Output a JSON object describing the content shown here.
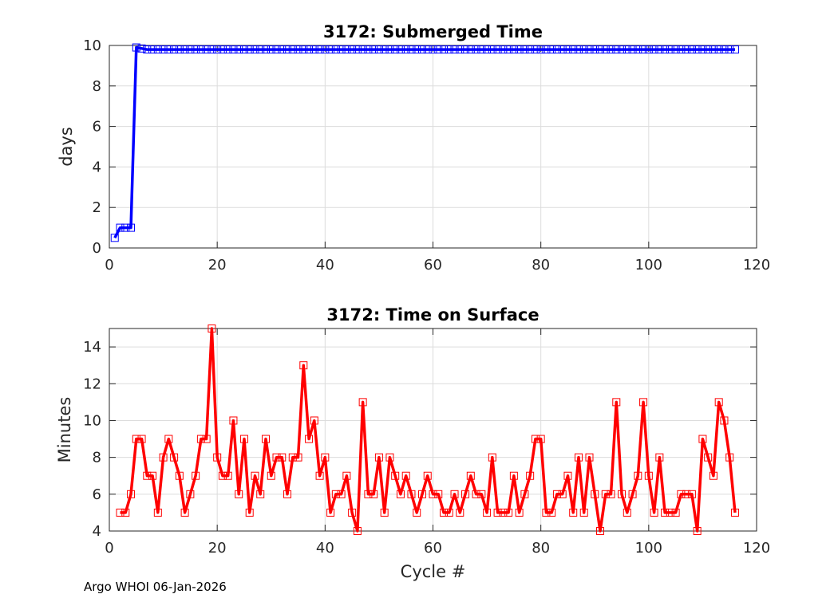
{
  "chart_data": [
    {
      "type": "line",
      "title": "3172: Submerged Time",
      "xlabel": "",
      "ylabel": "days",
      "xlim": [
        0,
        120
      ],
      "ylim": [
        0,
        10
      ],
      "xticks": [
        0,
        20,
        40,
        60,
        80,
        100,
        120
      ],
      "yticks": [
        0,
        2,
        4,
        6,
        8,
        10
      ],
      "grid": true,
      "color": "#0000ff",
      "marker": "square",
      "x": [
        1,
        2,
        3,
        4,
        5,
        6,
        7,
        8,
        9,
        10,
        11,
        12,
        13,
        14,
        15,
        16,
        17,
        18,
        19,
        20,
        21,
        22,
        23,
        24,
        25,
        26,
        27,
        28,
        29,
        30,
        31,
        32,
        33,
        34,
        35,
        36,
        37,
        38,
        39,
        40,
        41,
        42,
        43,
        44,
        45,
        46,
        47,
        48,
        49,
        50,
        51,
        52,
        53,
        54,
        55,
        56,
        57,
        58,
        59,
        60,
        61,
        62,
        63,
        64,
        65,
        66,
        67,
        68,
        69,
        70,
        71,
        72,
        73,
        74,
        75,
        76,
        77,
        78,
        79,
        80,
        81,
        82,
        83,
        84,
        85,
        86,
        87,
        88,
        89,
        90,
        91,
        92,
        93,
        94,
        95,
        96,
        97,
        98,
        99,
        100,
        101,
        102,
        103,
        104,
        105,
        106,
        107,
        108,
        109,
        110,
        111,
        112,
        113,
        114,
        115,
        116
      ],
      "y": [
        0.5,
        1,
        1,
        1,
        9.9,
        9.85,
        9.8,
        9.8,
        9.8,
        9.8,
        9.8,
        9.8,
        9.8,
        9.8,
        9.8,
        9.8,
        9.8,
        9.8,
        9.8,
        9.8,
        9.8,
        9.8,
        9.8,
        9.8,
        9.8,
        9.8,
        9.8,
        9.8,
        9.8,
        9.8,
        9.8,
        9.8,
        9.8,
        9.8,
        9.8,
        9.8,
        9.8,
        9.8,
        9.8,
        9.8,
        9.8,
        9.8,
        9.8,
        9.8,
        9.8,
        9.8,
        9.8,
        9.8,
        9.8,
        9.8,
        9.8,
        9.8,
        9.8,
        9.8,
        9.8,
        9.8,
        9.8,
        9.8,
        9.8,
        9.8,
        9.8,
        9.8,
        9.8,
        9.8,
        9.8,
        9.8,
        9.8,
        9.8,
        9.8,
        9.8,
        9.8,
        9.8,
        9.8,
        9.8,
        9.8,
        9.8,
        9.8,
        9.8,
        9.8,
        9.8,
        9.8,
        9.8,
        9.8,
        9.8,
        9.8,
        9.8,
        9.8,
        9.8,
        9.8,
        9.8,
        9.8,
        9.8,
        9.8,
        9.8,
        9.8,
        9.8,
        9.8,
        9.8,
        9.8,
        9.8,
        9.8,
        9.8,
        9.8,
        9.8,
        9.8,
        9.8,
        9.8,
        9.8,
        9.8,
        9.8,
        9.8,
        9.8,
        9.8,
        9.8,
        9.8,
        9.8
      ]
    },
    {
      "type": "line",
      "title": "3172: Time on Surface",
      "xlabel": "Cycle #",
      "ylabel": "Minutes",
      "xlim": [
        0,
        120
      ],
      "ylim": [
        4,
        15
      ],
      "xticks": [
        0,
        20,
        40,
        60,
        80,
        100,
        120
      ],
      "yticks": [
        4,
        6,
        8,
        10,
        12,
        14
      ],
      "grid": true,
      "color": "#ff0000",
      "marker": "square",
      "x": [
        2,
        3,
        4,
        5,
        6,
        7,
        8,
        9,
        10,
        11,
        12,
        13,
        14,
        15,
        16,
        17,
        18,
        19,
        20,
        21,
        22,
        23,
        24,
        25,
        26,
        27,
        28,
        29,
        30,
        31,
        32,
        33,
        34,
        35,
        36,
        37,
        38,
        39,
        40,
        41,
        42,
        43,
        44,
        45,
        46,
        47,
        48,
        49,
        50,
        51,
        52,
        53,
        54,
        55,
        56,
        57,
        58,
        59,
        60,
        61,
        62,
        63,
        64,
        65,
        66,
        67,
        68,
        69,
        70,
        71,
        72,
        73,
        74,
        75,
        76,
        77,
        78,
        79,
        80,
        81,
        82,
        83,
        84,
        85,
        86,
        87,
        88,
        89,
        90,
        91,
        92,
        93,
        94,
        95,
        96,
        97,
        98,
        99,
        100,
        101,
        102,
        103,
        104,
        105,
        106,
        107,
        108,
        109,
        110,
        111,
        112,
        113,
        114,
        115,
        116
      ],
      "y": [
        5,
        5,
        6,
        9,
        9,
        7,
        7,
        5,
        8,
        9,
        8,
        7,
        5,
        6,
        7,
        9,
        9,
        15,
        8,
        7,
        7,
        10,
        6,
        9,
        5,
        7,
        6,
        9,
        7,
        8,
        8,
        6,
        8,
        8,
        13,
        9,
        10,
        7,
        8,
        5,
        6,
        6,
        7,
        5,
        4,
        11,
        6,
        6,
        8,
        5,
        8,
        7,
        6,
        7,
        6,
        5,
        6,
        7,
        6,
        6,
        5,
        5,
        6,
        5,
        6,
        7,
        6,
        6,
        5,
        8,
        5,
        5,
        5,
        7,
        5,
        6,
        7,
        9,
        9,
        5,
        5,
        6,
        6,
        7,
        5,
        8,
        5,
        8,
        6,
        4,
        6,
        6,
        11,
        6,
        5,
        6,
        7,
        11,
        7,
        5,
        8,
        5,
        5,
        5,
        6,
        6,
        6,
        4,
        9,
        8,
        7,
        11,
        10,
        8,
        5
      ]
    }
  ],
  "footer": {
    "label": "Argo WHOI 06-Jan-2026"
  }
}
